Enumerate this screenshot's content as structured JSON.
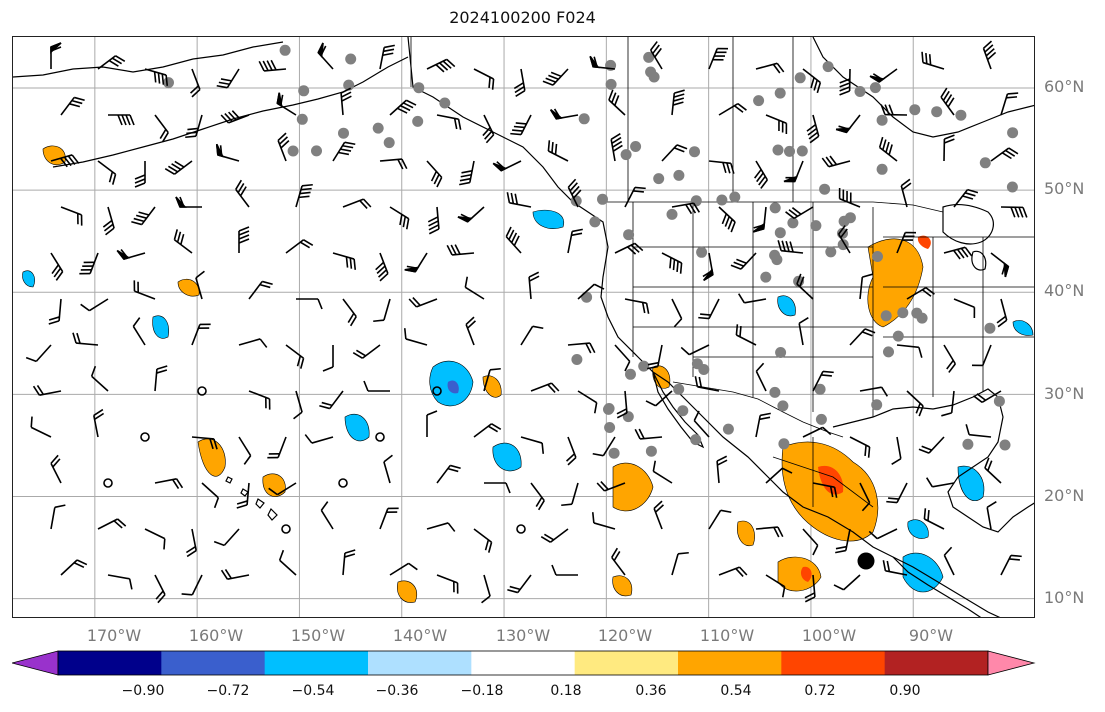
{
  "title": "2024100200 F024",
  "axes": {
    "lat_labels": [
      {
        "deg": 60,
        "label": "60°N"
      },
      {
        "deg": 50,
        "label": "50°N"
      },
      {
        "deg": 40,
        "label": "40°N"
      },
      {
        "deg": 30,
        "label": "30°N"
      },
      {
        "deg": 20,
        "label": "20°N"
      },
      {
        "deg": 10,
        "label": "10°N"
      }
    ],
    "lon_labels": [
      {
        "deg": -170,
        "label": "170°W"
      },
      {
        "deg": -160,
        "label": "160°W"
      },
      {
        "deg": -150,
        "label": "150°W"
      },
      {
        "deg": -140,
        "label": "140°W"
      },
      {
        "deg": -130,
        "label": "130°W"
      },
      {
        "deg": -120,
        "label": "120°W"
      },
      {
        "deg": -110,
        "label": "110°W"
      },
      {
        "deg": -100,
        "label": "100°W"
      },
      {
        "deg": -90,
        "label": "90°W"
      }
    ],
    "lon_range": [
      -178,
      -78
    ],
    "lat_range": [
      8,
      65
    ],
    "grid": true
  },
  "colorbar": {
    "bounds": [
      -0.9,
      -0.72,
      -0.54,
      -0.36,
      -0.18,
      0.18,
      0.36,
      0.54,
      0.72,
      0.9
    ],
    "tick_labels": [
      "−0.90",
      "−0.72",
      "−0.54",
      "−0.36",
      "−0.18",
      "0.18",
      "0.36",
      "0.54",
      "0.72",
      "0.90"
    ],
    "colors": [
      "#9932cc",
      "#00008b",
      "#3a5fcd",
      "#00bfff",
      "#aee0ff",
      "#ffffff",
      "#ffea80",
      "#ffa500",
      "#ff4500",
      "#b22222",
      "#ff88aa"
    ],
    "extend": "both"
  },
  "colors": {
    "land_line": "#000000",
    "grid_line": "#aaaaaa",
    "station": "#808080",
    "tick_text": "#7a7a7a"
  }
}
